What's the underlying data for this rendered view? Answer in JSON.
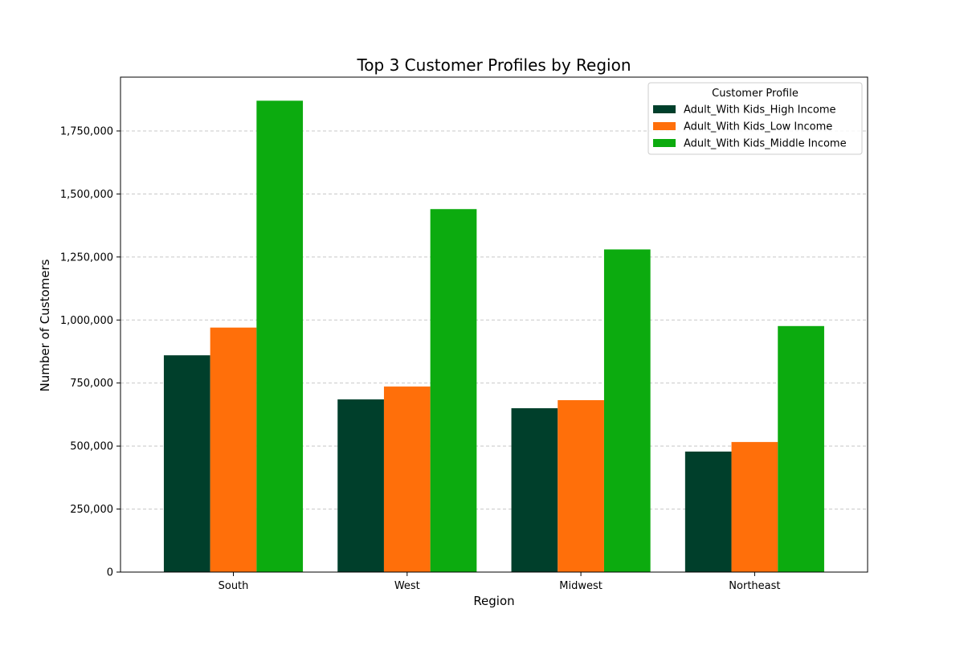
{
  "chart_data": {
    "type": "bar",
    "title": "Top 3 Customer Profiles by Region",
    "xlabel": "Region",
    "ylabel": "Number of Customers",
    "categories": [
      "South",
      "West",
      "Midwest",
      "Northeast"
    ],
    "series": [
      {
        "name": "Adult_With Kids_High Income",
        "color": "#003f2b",
        "values": [
          860000,
          685000,
          650000,
          478000
        ]
      },
      {
        "name": "Adult_With Kids_Low Income",
        "color": "#ff6f0a",
        "values": [
          970000,
          736000,
          682000,
          516000
        ]
      },
      {
        "name": "Adult_With Kids_Middle Income",
        "color": "#0cab0f",
        "values": [
          1870000,
          1440000,
          1280000,
          976000
        ]
      }
    ],
    "ylim": [
      0,
      1963500
    ],
    "yticks": [
      0,
      250000,
      500000,
      750000,
      1000000,
      1250000,
      1500000,
      1750000
    ],
    "ytick_labels": [
      "0",
      "250,000",
      "500,000",
      "750,000",
      "1,000,000",
      "1,250,000",
      "1,500,000",
      "1,750,000"
    ],
    "grid": "y-dashed",
    "legend": {
      "title": "Customer Profile",
      "placement": "top-right"
    }
  }
}
